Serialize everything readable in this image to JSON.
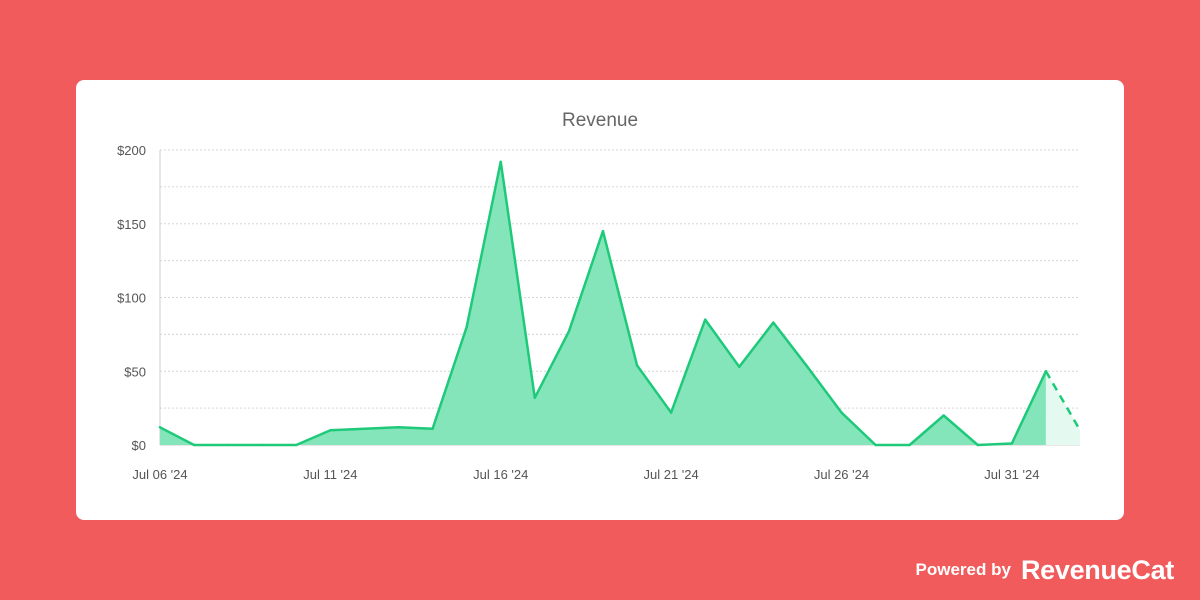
{
  "footer": {
    "powered_by": "Powered by",
    "brand": "RevenueCat",
    "brand_color": "#ffffff"
  },
  "colors": {
    "background": "#f25b5b",
    "card": "#ffffff",
    "line": "#1ec97a",
    "area": "#84e5bb",
    "projected_area": "#e4f9ef"
  },
  "chart_data": {
    "type": "area",
    "title": "Revenue",
    "xlabel": "",
    "ylabel": "",
    "x": [
      "2024-07-06",
      "2024-07-07",
      "2024-07-08",
      "2024-07-09",
      "2024-07-10",
      "2024-07-11",
      "2024-07-12",
      "2024-07-13",
      "2024-07-14",
      "2024-07-15",
      "2024-07-16",
      "2024-07-17",
      "2024-07-18",
      "2024-07-19",
      "2024-07-20",
      "2024-07-21",
      "2024-07-22",
      "2024-07-23",
      "2024-07-24",
      "2024-07-25",
      "2024-07-26",
      "2024-07-27",
      "2024-07-28",
      "2024-07-29",
      "2024-07-30",
      "2024-07-31",
      "2024-08-01",
      "2024-08-02"
    ],
    "series": [
      {
        "values": [
          12,
          0,
          0,
          0,
          0,
          10,
          11,
          12,
          11,
          80,
          192,
          32,
          77,
          145,
          54,
          22,
          85,
          53,
          83,
          53,
          22,
          0,
          0,
          20,
          0,
          1,
          50,
          null
        ],
        "projected": [
          null,
          null,
          null,
          null,
          null,
          null,
          null,
          null,
          null,
          null,
          null,
          null,
          null,
          null,
          null,
          null,
          null,
          null,
          null,
          null,
          null,
          null,
          null,
          null,
          null,
          null,
          50,
          10
        ]
      }
    ],
    "ylim": [
      0,
      200
    ],
    "yticks": [
      0,
      50,
      100,
      150,
      200
    ],
    "ytick_labels": [
      "$0",
      "$50",
      "$100",
      "$150",
      "$200"
    ],
    "xtick_labels": [
      {
        "x": "2024-07-06",
        "label": "Jul 06 '24"
      },
      {
        "x": "2024-07-11",
        "label": "Jul 11 '24"
      },
      {
        "x": "2024-07-16",
        "label": "Jul 16 '24"
      },
      {
        "x": "2024-07-21",
        "label": "Jul 21 '24"
      },
      {
        "x": "2024-07-26",
        "label": "Jul 26 '24"
      },
      {
        "x": "2024-07-31",
        "label": "Jul 31 '24"
      }
    ],
    "grid": true,
    "legend": "none"
  }
}
